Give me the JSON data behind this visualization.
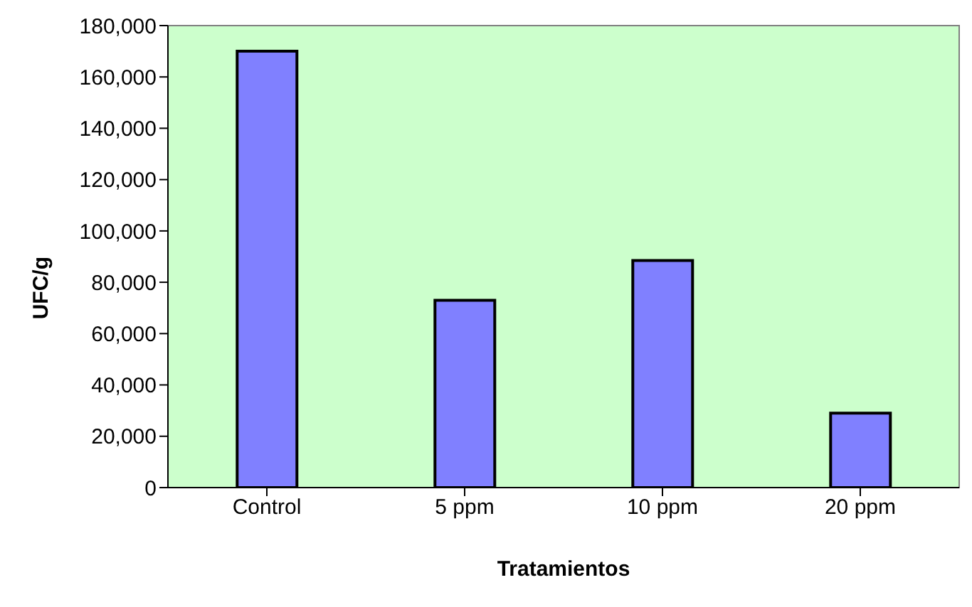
{
  "chart_data": {
    "type": "bar",
    "xlabel": "Tratamientos",
    "ylabel": "UFC/g",
    "categories": [
      "Control",
      "5 ppm",
      "10 ppm",
      "20 ppm"
    ],
    "values": [
      170000,
      73000,
      88500,
      29000
    ],
    "color": "#8080ff",
    "ylim": [
      0,
      180000
    ],
    "yticks": [
      {
        "value": 0,
        "label": "0"
      },
      {
        "value": 20000,
        "label": "20,000"
      },
      {
        "value": 40000,
        "label": "40,000"
      },
      {
        "value": 60000,
        "label": "60,000"
      },
      {
        "value": 80000,
        "label": "80,000"
      },
      {
        "value": 100000,
        "label": "100,000"
      },
      {
        "value": 120000,
        "label": "120,000"
      },
      {
        "value": 140000,
        "label": "140,000"
      },
      {
        "value": 160000,
        "label": "160,000"
      },
      {
        "value": 180000,
        "label": "180,000"
      }
    ],
    "legend": false
  }
}
